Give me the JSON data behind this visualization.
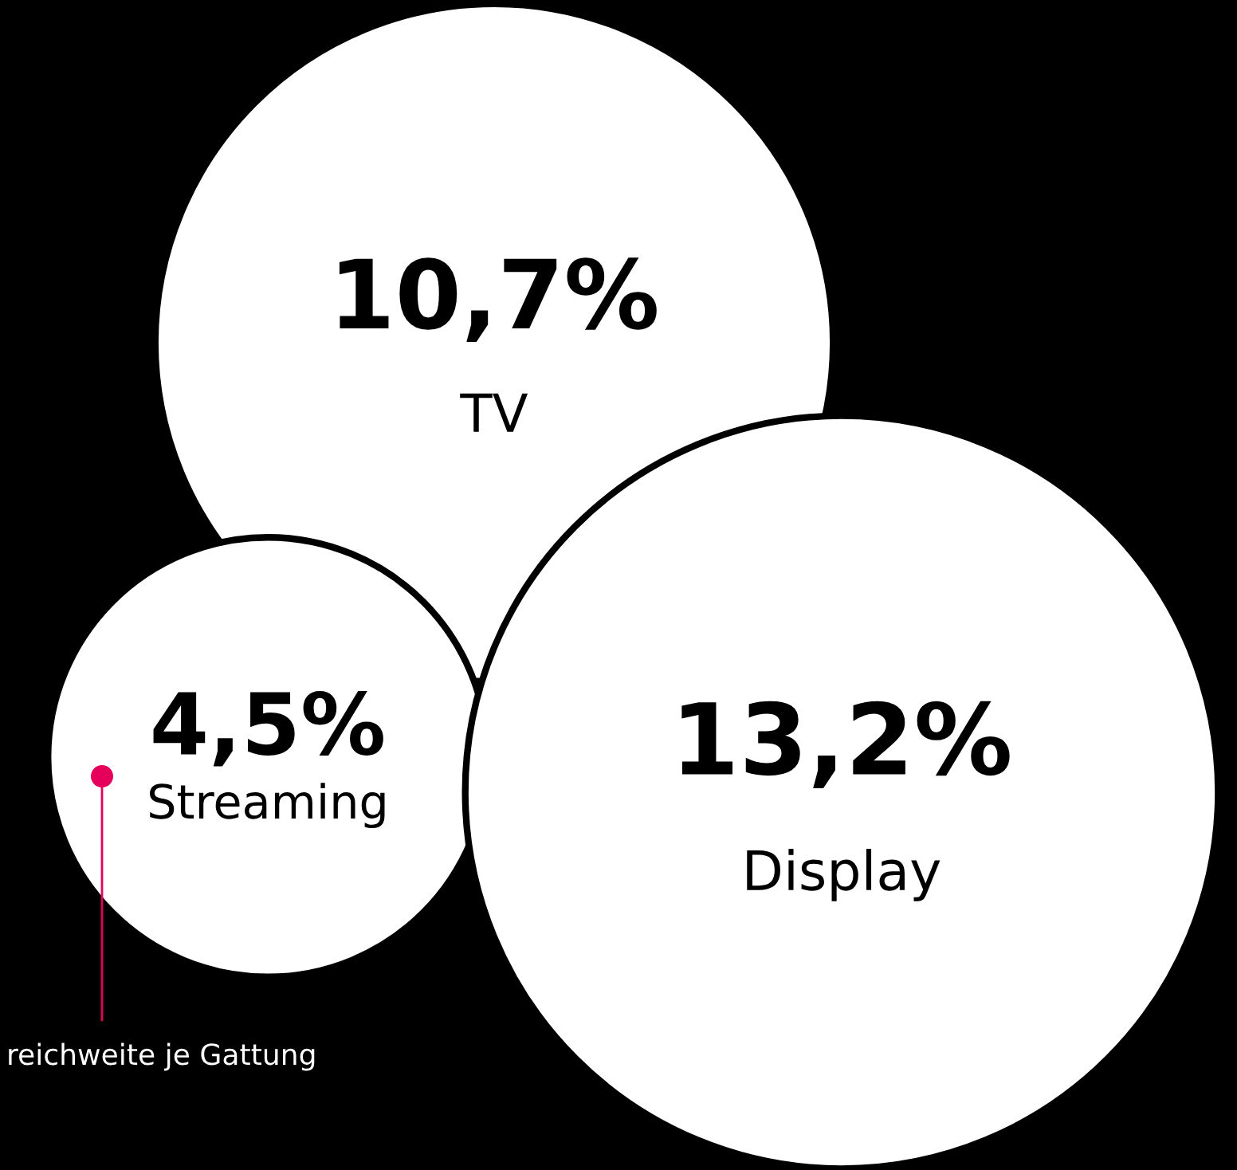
{
  "chart_data": {
    "type": "other",
    "categories": [
      "TV",
      "Streaming",
      "Display"
    ],
    "values": [
      10.7,
      4.5,
      13.2
    ],
    "value_labels": [
      "10,7%",
      "4,5%",
      "13,2%"
    ],
    "colors": [
      "#ffffff",
      "#ffffff",
      "#ffffff"
    ],
    "annotations": [
      "reichweite je Gattung"
    ]
  }
}
